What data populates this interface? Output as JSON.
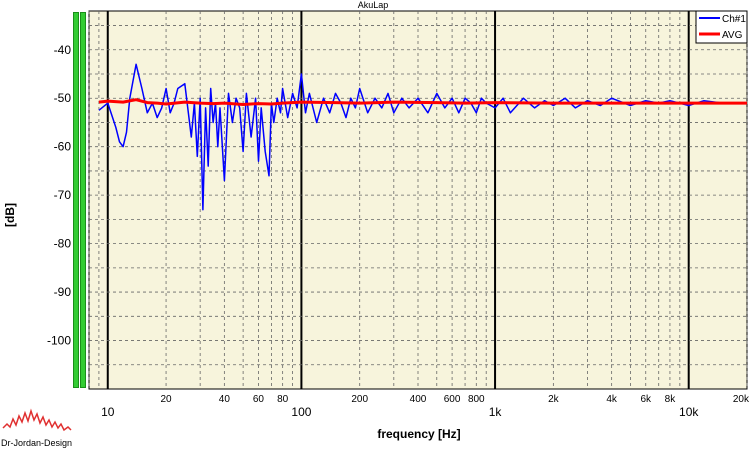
{
  "chart_data": {
    "type": "line",
    "title": "AkuLap",
    "xlabel": "frequency [Hz]",
    "ylabel": "[dB]",
    "xscale": "log",
    "xlim": [
      8,
      20000
    ],
    "ylim": [
      -110,
      -32
    ],
    "grid": true,
    "legend_position": "top-right",
    "background_color": "#f7f4dc",
    "y_ticks": [
      -40,
      -50,
      -60,
      -70,
      -80,
      -90,
      -100
    ],
    "y_tick_labels": [
      "-40",
      "-50",
      "-60",
      "-70",
      "-80",
      "-90",
      "-100"
    ],
    "x_ticks": [
      10,
      20,
      40,
      60,
      80,
      100,
      200,
      400,
      600,
      800,
      1000,
      2000,
      4000,
      6000,
      8000,
      10000,
      20000
    ],
    "x_tick_labels": [
      "10",
      "20",
      "40",
      "60",
      "80",
      "100",
      "200",
      "400",
      "600",
      "800",
      "1k",
      "2k",
      "4k",
      "6k",
      "8k",
      "10k",
      "20k"
    ],
    "x_tick_major": [
      true,
      false,
      false,
      false,
      false,
      true,
      false,
      false,
      false,
      false,
      true,
      false,
      false,
      false,
      false,
      true,
      false
    ],
    "series": [
      {
        "name": "Ch#1",
        "color": "#0000ff",
        "x": [
          9,
          10,
          11,
          11.5,
          12,
          12.5,
          13,
          14,
          15,
          16,
          17,
          18,
          19,
          20,
          21,
          22,
          23,
          25,
          27,
          28,
          29,
          30,
          31,
          32,
          33,
          34,
          35,
          36,
          37,
          38,
          40,
          42,
          44,
          46,
          48,
          50,
          52,
          55,
          58,
          60,
          62,
          65,
          68,
          70,
          72,
          75,
          78,
          80,
          85,
          90,
          95,
          100,
          105,
          110,
          120,
          130,
          140,
          150,
          160,
          170,
          180,
          190,
          200,
          220,
          240,
          260,
          280,
          300,
          330,
          360,
          400,
          450,
          500,
          550,
          600,
          650,
          700,
          750,
          800,
          850,
          900,
          1000,
          1100,
          1200,
          1400,
          1600,
          1800,
          2000,
          2300,
          2600,
          3000,
          3500,
          4000,
          5000,
          6000,
          7000,
          8000,
          10000,
          12000,
          15000,
          20000
        ],
        "values": [
          -52.5,
          -51,
          -56,
          -59,
          -60,
          -57,
          -50,
          -43,
          -48,
          -53,
          -51,
          -54,
          -52,
          -48,
          -53,
          -51,
          -48,
          -47,
          -58,
          -51,
          -62,
          -50,
          -73,
          -52,
          -64,
          -48,
          -55,
          -51,
          -60,
          -52,
          -67,
          -49,
          -55,
          -50,
          -52,
          -61,
          -49,
          -58,
          -50,
          -63,
          -52,
          -61,
          -66,
          -51,
          -55,
          -50,
          -53,
          -48,
          -54,
          -49,
          -52,
          -45,
          -53,
          -49,
          -55,
          -50,
          -53,
          -49,
          -51,
          -54,
          -50,
          -52,
          -48,
          -53,
          -50,
          -52,
          -49,
          -53,
          -50,
          -52,
          -50,
          -53,
          -49,
          -52,
          -50,
          -53,
          -50,
          -51,
          -53,
          -50,
          -51,
          -52,
          -50,
          -53,
          -50,
          -52,
          -50.5,
          -51.5,
          -50,
          -52,
          -50.5,
          -51.5,
          -50,
          -51.5,
          -50.5,
          -51,
          -50.5,
          -51.5,
          -50.5,
          -51,
          -51
        ]
      },
      {
        "name": "AVG",
        "color": "#ff0000",
        "x": [
          9,
          10,
          12,
          14,
          16,
          18,
          20,
          25,
          30,
          35,
          40,
          50,
          60,
          70,
          80,
          100,
          150,
          200,
          300,
          500,
          700,
          1000,
          2000,
          5000,
          10000,
          20000
        ],
        "values": [
          -50.8,
          -50.6,
          -50.8,
          -50.3,
          -50.9,
          -51,
          -51.2,
          -50.8,
          -51,
          -51.1,
          -51,
          -51.3,
          -51.1,
          -51.2,
          -51,
          -50.8,
          -50.9,
          -51,
          -50.8,
          -50.9,
          -51,
          -50.9,
          -51,
          -51,
          -51,
          -51
        ]
      }
    ]
  },
  "logo": {
    "text": "Dr-Jordan-Design"
  }
}
